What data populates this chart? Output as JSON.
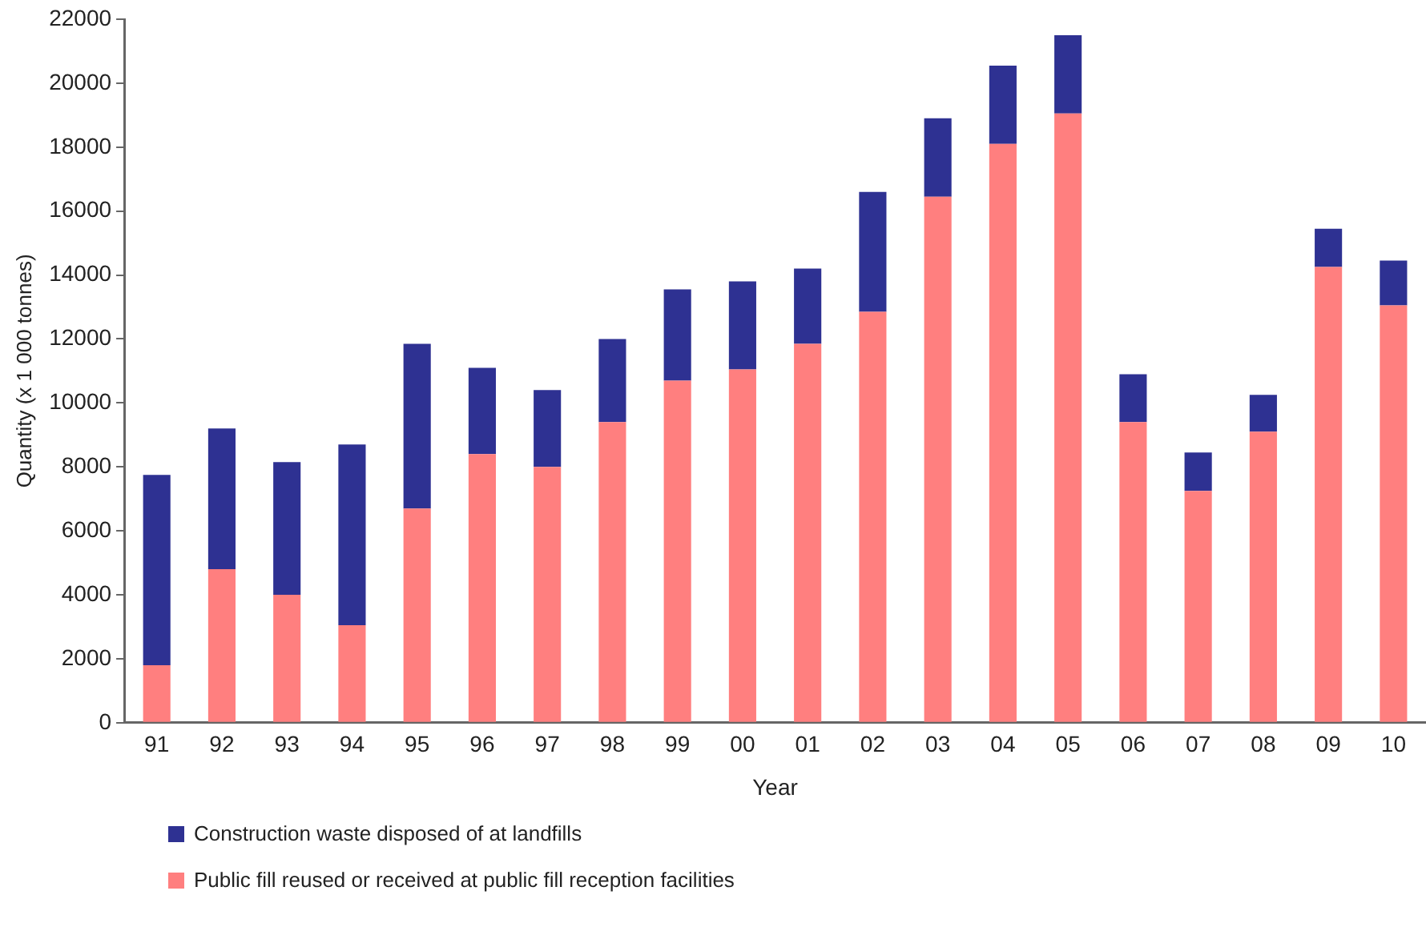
{
  "chart_data": {
    "type": "bar",
    "stacked": true,
    "xlabel": "Year",
    "ylabel": "Quantity (x 1 000 tonnes)",
    "categories": [
      "91",
      "92",
      "93",
      "94",
      "95",
      "96",
      "97",
      "98",
      "99",
      "00",
      "01",
      "02",
      "03",
      "04",
      "05",
      "06",
      "07",
      "08",
      "09",
      "10"
    ],
    "series": [
      {
        "name": "Public fill reused or received at public fill reception facilities",
        "color": "#ff7f7f",
        "values": [
          1800,
          4800,
          4000,
          3050,
          6700,
          8400,
          8000,
          9400,
          10700,
          11050,
          11850,
          12850,
          16450,
          18100,
          19050,
          9400,
          7250,
          9100,
          14250,
          13050
        ]
      },
      {
        "name": "Construction waste disposed of at landfills",
        "color": "#2e3192",
        "values": [
          5950,
          4400,
          4150,
          5650,
          5150,
          2700,
          2400,
          2600,
          2850,
          2750,
          2350,
          3750,
          2450,
          2450,
          2450,
          1500,
          1200,
          1150,
          1200,
          1400
        ]
      }
    ],
    "ylim": [
      0,
      22000
    ],
    "yticks": [
      0,
      2000,
      4000,
      6000,
      8000,
      10000,
      12000,
      14000,
      16000,
      18000,
      20000,
      22000
    ],
    "grid": false,
    "legend": "bottom"
  }
}
